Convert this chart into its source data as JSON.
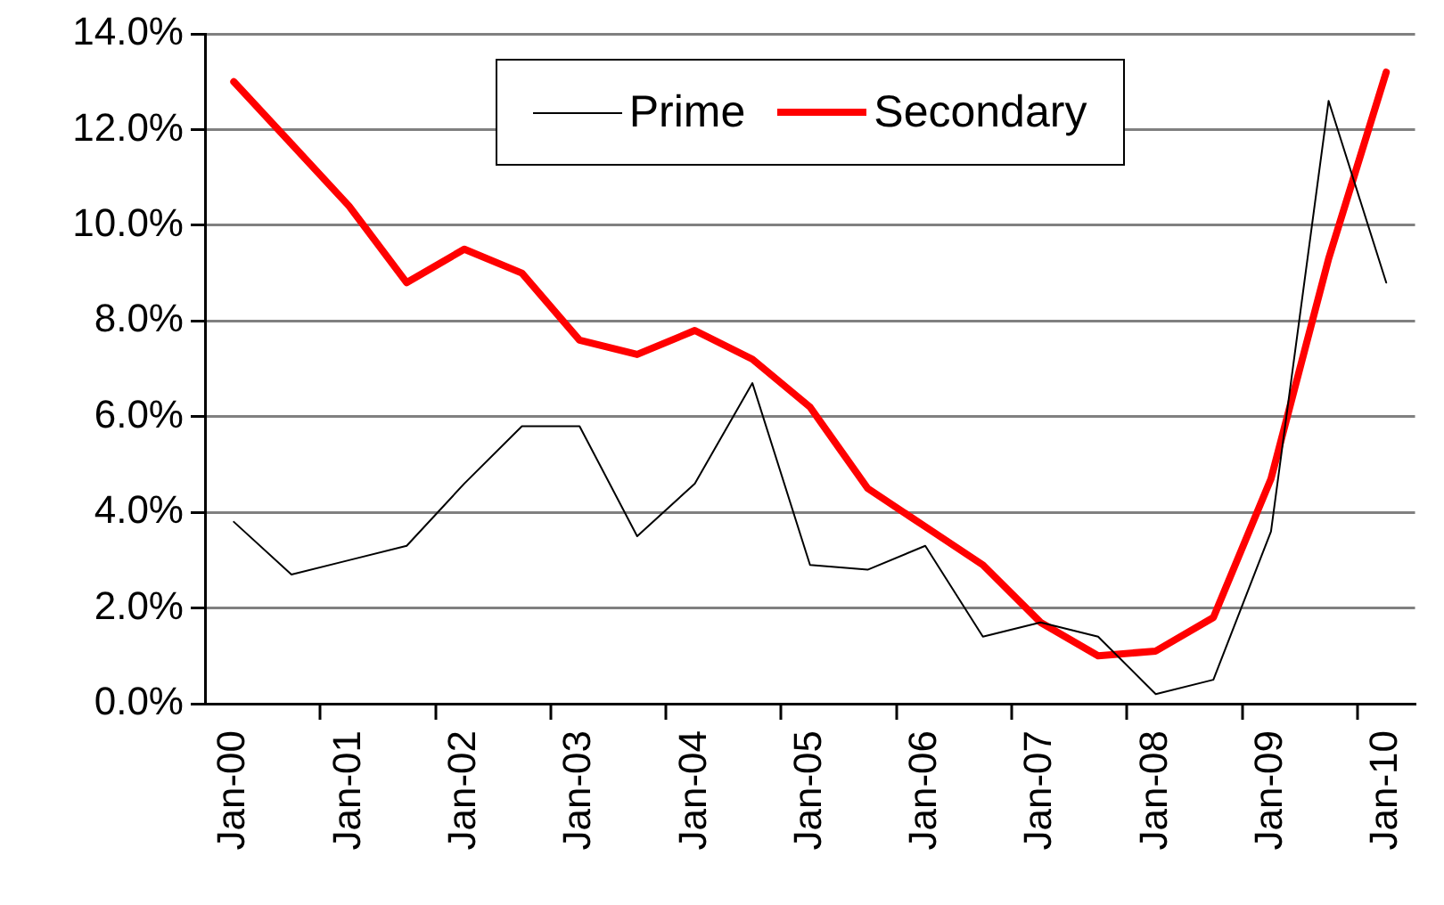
{
  "chart_data": {
    "type": "line",
    "categories": [
      "Jan-00",
      null,
      "Jan-01",
      null,
      "Jan-02",
      null,
      "Jan-03",
      null,
      "Jan-04",
      null,
      "Jan-05",
      null,
      "Jan-06",
      null,
      "Jan-07",
      null,
      "Jan-08",
      null,
      "Jan-09",
      null,
      "Jan-10"
    ],
    "series": [
      {
        "name": "Prime",
        "color": "#000000",
        "values": [
          3.8,
          2.7,
          3.0,
          3.3,
          4.6,
          5.8,
          5.8,
          3.5,
          4.6,
          6.7,
          2.9,
          2.8,
          3.3,
          1.4,
          1.7,
          1.4,
          0.2,
          0.5,
          3.6,
          12.6,
          8.8
        ]
      },
      {
        "name": "Secondary",
        "color": "#ff0000",
        "values": [
          13.0,
          11.7,
          10.4,
          8.8,
          9.5,
          9.0,
          7.6,
          7.3,
          7.8,
          7.2,
          6.2,
          4.5,
          3.7,
          2.9,
          1.7,
          1.0,
          1.1,
          1.8,
          4.7,
          9.3,
          13.2
        ]
      }
    ],
    "ylim": [
      0,
      14
    ],
    "yticks": [
      {
        "value": 0,
        "label": "0.0%"
      },
      {
        "value": 2,
        "label": "2.0%"
      },
      {
        "value": 4,
        "label": "4.0%"
      },
      {
        "value": 6,
        "label": "6.0%"
      },
      {
        "value": 8,
        "label": "8.0%"
      },
      {
        "value": 10,
        "label": "10.0%"
      },
      {
        "value": 12,
        "label": "12.0%"
      },
      {
        "value": 14,
        "label": "14.0%"
      }
    ],
    "grid": "y",
    "legend": "top",
    "marker": "none",
    "line_style": "solid"
  }
}
